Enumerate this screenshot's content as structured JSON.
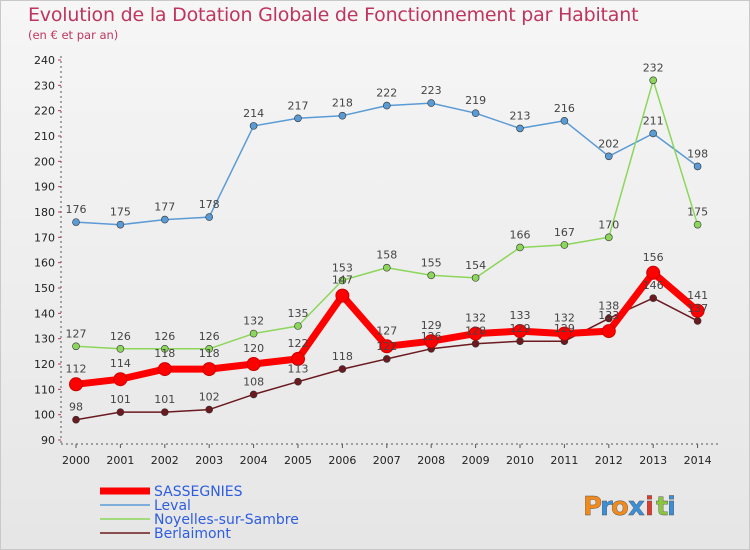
{
  "chart_data": {
    "type": "line",
    "title": "Evolution de la Dotation Globale de Fonctionnement par Habitant",
    "subtitle": "(en € et par an)",
    "xlabel": "",
    "ylabel": "",
    "ylim": [
      90,
      240
    ],
    "yticks": [
      90,
      100,
      110,
      120,
      130,
      140,
      150,
      160,
      170,
      180,
      190,
      200,
      210,
      220,
      230,
      240
    ],
    "categories": [
      "2000",
      "2001",
      "2002",
      "2003",
      "2004",
      "2005",
      "2006",
      "2007",
      "2008",
      "2009",
      "2010",
      "2011",
      "2012",
      "2013",
      "2014"
    ],
    "series": [
      {
        "name": "Leval",
        "color": "#5b9bd5",
        "values": [
          176,
          175,
          177,
          178,
          214,
          217,
          218,
          222,
          223,
          219,
          213,
          216,
          202,
          211,
          198
        ],
        "labels": [
          "176",
          "175",
          "177",
          "178",
          "214",
          "217",
          "218",
          "222",
          "223",
          "219",
          "213",
          "216",
          "202",
          "211",
          "198"
        ]
      },
      {
        "name": "Noyelles-sur-Sambre",
        "color": "#8cd65b",
        "values": [
          127,
          126,
          126,
          126,
          132,
          135,
          153,
          158,
          155,
          154,
          166,
          167,
          170,
          232,
          175
        ],
        "labels": [
          "127",
          "126",
          "126",
          "126",
          "132",
          "135",
          "153",
          "158",
          "155",
          "154",
          "166",
          "167",
          "170",
          "232",
          "175"
        ]
      },
      {
        "name": "Berlaimont",
        "color": "#6b1a1f",
        "values": [
          98,
          101,
          101,
          102,
          108,
          113,
          118,
          122,
          126,
          128,
          129,
          129,
          138,
          146,
          137
        ],
        "labels": [
          "98",
          "101",
          "101",
          "102",
          "108",
          "113",
          "118",
          "122",
          "126",
          "128",
          "129",
          "129",
          "138",
          "146",
          "137"
        ]
      },
      {
        "name": "SASSEGNIES",
        "color": "#ff0000",
        "values": [
          112,
          114,
          118,
          118,
          120,
          122,
          147,
          127,
          129,
          132,
          133,
          132,
          133,
          156,
          141
        ],
        "labels": [
          "112",
          "114",
          "118",
          "118",
          "120",
          "122",
          "147",
          "127",
          "129",
          "132",
          "133",
          "132",
          "133",
          "156",
          "141"
        ]
      }
    ],
    "legend": [
      "SASSEGNIES",
      "Leval",
      "Noyelles-sur-Sambre",
      "Berlaimont"
    ],
    "legend_position": "bottom-left",
    "grid": false
  },
  "logo": {
    "text": "Proxiti",
    "letters": [
      "P",
      "r",
      "o",
      "x",
      "i",
      "t",
      "i"
    ]
  }
}
